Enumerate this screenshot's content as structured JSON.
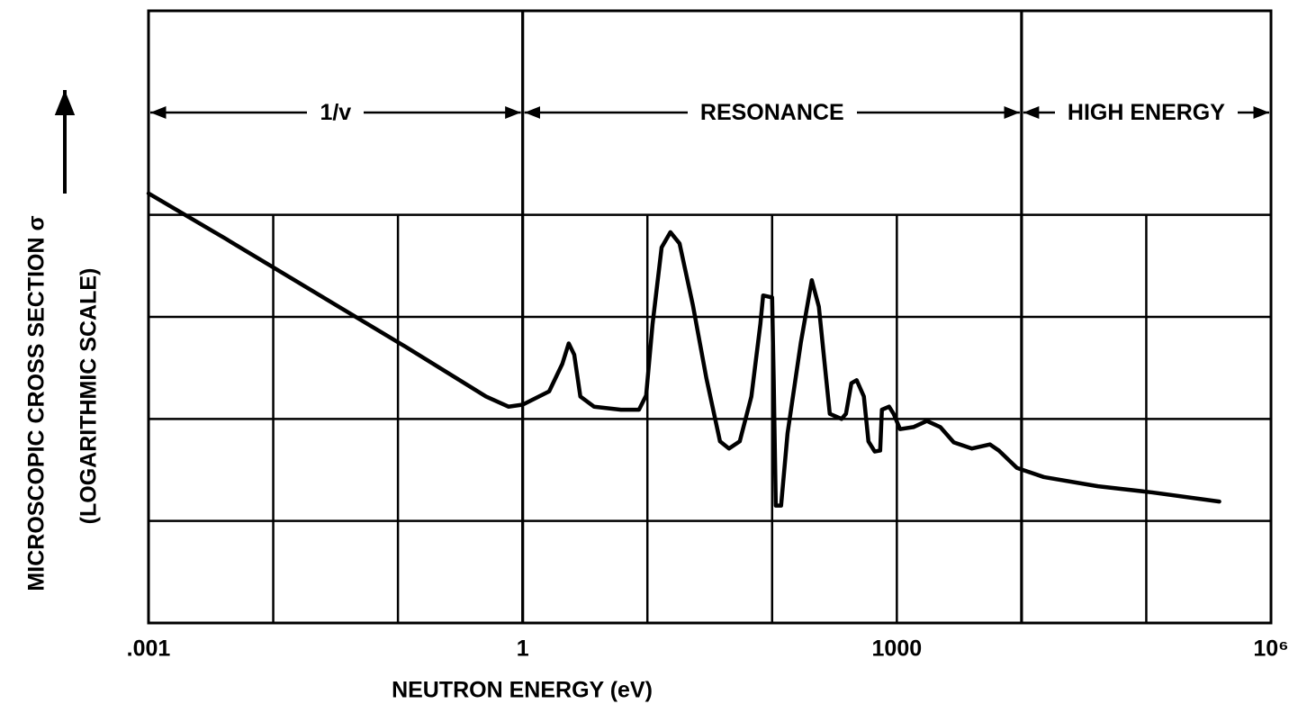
{
  "chart_data": {
    "type": "line",
    "x_label": "NEUTRON ENERGY (eV)",
    "y_label": [
      "MICROSCOPIC CROSS SECTION σ",
      "(LOGARITHMIC SCALE)"
    ],
    "xscale": "log",
    "xlim": [
      0.001,
      1000000
    ],
    "xticks": [
      {
        "value": 0.001,
        "label": ".001"
      },
      1,
      1000,
      {
        "value": 1000000,
        "label": "10⁶"
      }
    ],
    "xgrid": [
      0.01,
      0.1,
      10,
      100,
      10000,
      100000
    ],
    "ylim": [
      0,
      6
    ],
    "yticks": [
      1,
      2,
      3,
      4
    ],
    "grid": true,
    "regions": [
      {
        "label": "1/v",
        "from": 0.001,
        "to": 1
      },
      {
        "label": "RESONANCE",
        "from": 1,
        "to": 10000
      },
      {
        "label": "HIGH ENERGY",
        "from": 10000,
        "to": 1000000
      }
    ],
    "series": [
      {
        "color": "#000000",
        "x": [
          0.001,
          0.0041,
          0.0216,
          0.114,
          0.508,
          0.769,
          1.0,
          1.63,
          2.08,
          2.34,
          2.59,
          2.9,
          3.73,
          6.13,
          8.56,
          9.77,
          11.0,
          13.0,
          15.3,
          18.1,
          23.2,
          29.7,
          38.2,
          45.1,
          55.0,
          68.2,
          80.5,
          84.7,
          100,
          103,
          107,
          118,
          133,
          170,
          208,
          237,
          271,
          290,
          360,
          391,
          432,
          476,
          544,
          592,
          665,
          735,
          759,
          867,
          942,
          1060,
          1360,
          1740,
          2230,
          2860,
          4000,
          5570,
          6580,
          9180,
          15100,
          40900,
          111000,
          385000
        ],
        "values": [
          4.21,
          3.77,
          3.24,
          2.71,
          2.22,
          2.12,
          2.14,
          2.27,
          2.54,
          2.74,
          2.63,
          2.22,
          2.12,
          2.09,
          2.09,
          2.23,
          2.93,
          3.68,
          3.83,
          3.72,
          3.11,
          2.4,
          1.78,
          1.71,
          1.78,
          2.22,
          2.93,
          3.21,
          3.19,
          2.38,
          1.15,
          1.15,
          1.86,
          2.75,
          3.36,
          3.1,
          2.4,
          2.05,
          2.0,
          2.05,
          2.35,
          2.38,
          2.22,
          1.78,
          1.68,
          1.69,
          2.09,
          2.12,
          2.05,
          1.9,
          1.92,
          1.98,
          1.92,
          1.77,
          1.71,
          1.75,
          1.69,
          1.52,
          1.43,
          1.34,
          1.28,
          1.19
        ]
      }
    ]
  }
}
